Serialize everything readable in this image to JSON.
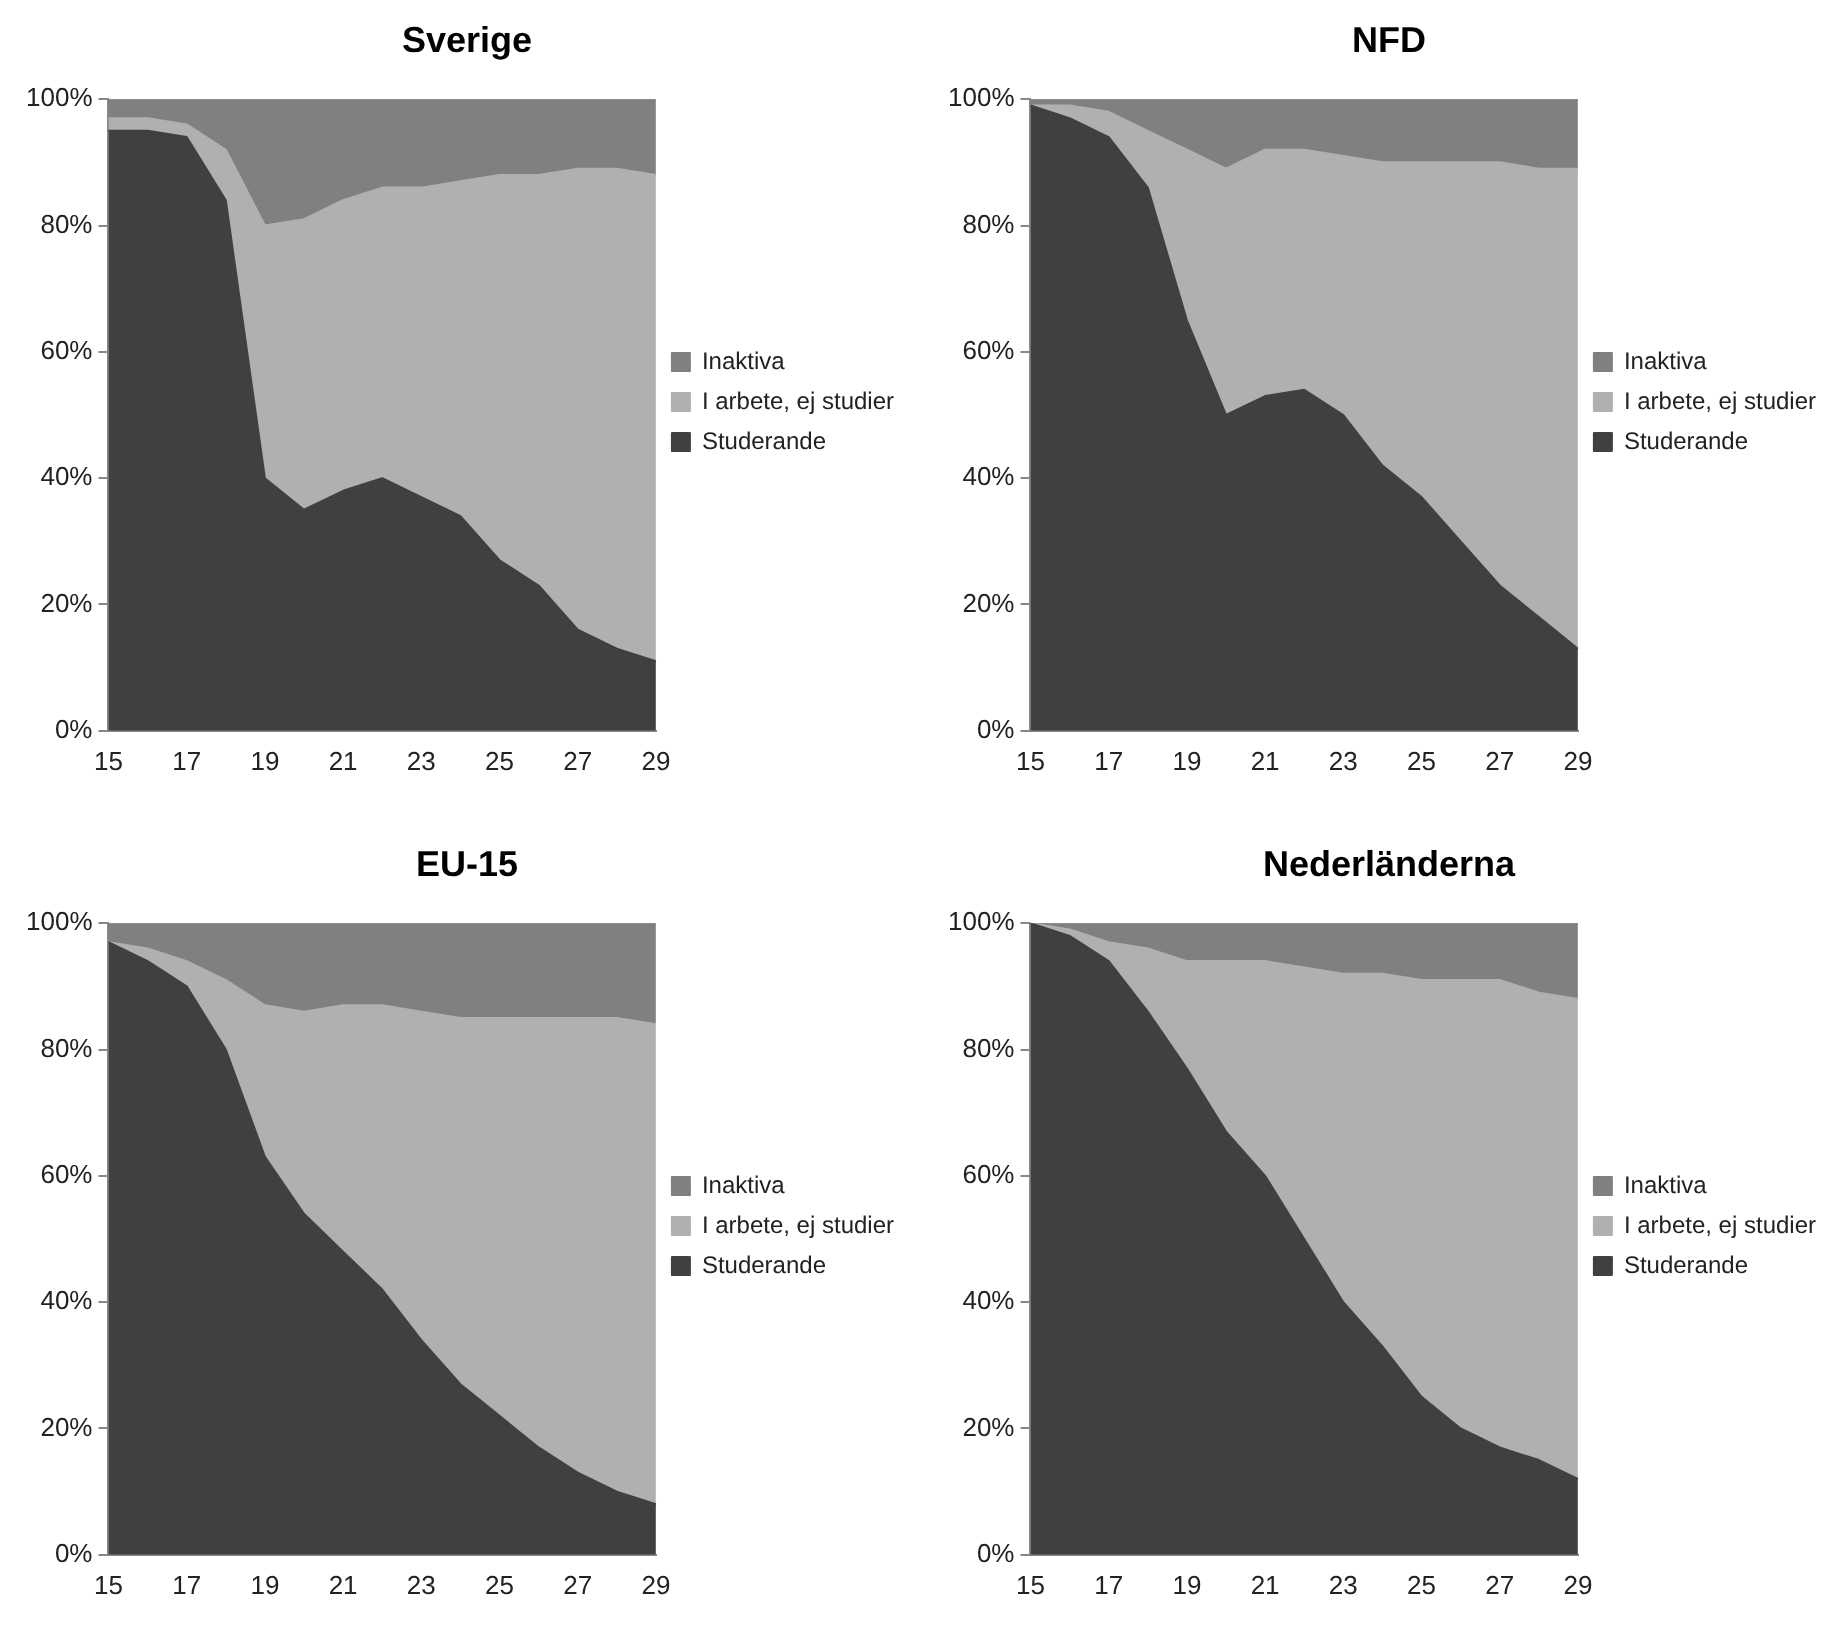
{
  "chart_data": [
    {
      "type": "area",
      "title": "Sverige",
      "stacked": true,
      "legend": "right",
      "grid": false,
      "categories": [
        "15",
        null,
        "17",
        null,
        "19",
        null,
        "21",
        null,
        "23",
        null,
        "25",
        null,
        "27",
        null,
        "29"
      ],
      "ylim": [
        0,
        100
      ],
      "yticks": [
        {
          "value": 0,
          "label": "0%"
        },
        {
          "value": 20,
          "label": "20%"
        },
        {
          "value": 40,
          "label": "40%"
        },
        {
          "value": 60,
          "label": "60%"
        },
        {
          "value": 80,
          "label": "80%"
        },
        {
          "value": 100,
          "label": "100%"
        }
      ],
      "series": [
        {
          "name": "Studerande",
          "color": "#404040",
          "values": [
            95,
            95,
            94,
            84,
            40,
            35,
            38,
            40,
            37,
            34,
            27,
            23,
            16,
            13,
            11
          ]
        },
        {
          "name": "I arbete, ej studier",
          "color": "#b0b0b0",
          "values": [
            2,
            2,
            2,
            8,
            40,
            46,
            46,
            46,
            49,
            53,
            61,
            65,
            73,
            76,
            77
          ]
        },
        {
          "name": "Inaktiva",
          "color": "#808080",
          "values": [
            3,
            3,
            4,
            8,
            20,
            19,
            16,
            14,
            14,
            13,
            12,
            12,
            11,
            11,
            12
          ]
        }
      ]
    },
    {
      "type": "area",
      "title": "NFD",
      "stacked": true,
      "legend": "right",
      "grid": false,
      "categories": [
        "15",
        null,
        "17",
        null,
        "19",
        null,
        "21",
        null,
        "23",
        null,
        "25",
        null,
        "27",
        null,
        "29"
      ],
      "ylim": [
        0,
        100
      ],
      "yticks": [
        {
          "value": 0,
          "label": "0%"
        },
        {
          "value": 20,
          "label": "20%"
        },
        {
          "value": 40,
          "label": "40%"
        },
        {
          "value": 60,
          "label": "60%"
        },
        {
          "value": 80,
          "label": "80%"
        },
        {
          "value": 100,
          "label": "100%"
        }
      ],
      "series": [
        {
          "name": "Studerande",
          "color": "#404040",
          "values": [
            99,
            97,
            94,
            86,
            65,
            50,
            53,
            54,
            50,
            42,
            37,
            30,
            23,
            18,
            13
          ]
        },
        {
          "name": "I arbete, ej studier",
          "color": "#b0b0b0",
          "values": [
            0,
            2,
            4,
            9,
            27,
            39,
            39,
            38,
            41,
            48,
            53,
            60,
            67,
            71,
            76
          ]
        },
        {
          "name": "Inaktiva",
          "color": "#808080",
          "values": [
            1,
            1,
            2,
            5,
            8,
            11,
            8,
            8,
            9,
            10,
            10,
            10,
            10,
            11,
            11
          ]
        }
      ]
    },
    {
      "type": "area",
      "title": "EU-15",
      "stacked": true,
      "legend": "right",
      "grid": false,
      "categories": [
        "15",
        null,
        "17",
        null,
        "19",
        null,
        "21",
        null,
        "23",
        null,
        "25",
        null,
        "27",
        null,
        "29"
      ],
      "ylim": [
        0,
        100
      ],
      "yticks": [
        {
          "value": 0,
          "label": "0%"
        },
        {
          "value": 20,
          "label": "20%"
        },
        {
          "value": 40,
          "label": "40%"
        },
        {
          "value": 60,
          "label": "60%"
        },
        {
          "value": 80,
          "label": "80%"
        },
        {
          "value": 100,
          "label": "100%"
        }
      ],
      "series": [
        {
          "name": "Studerande",
          "color": "#404040",
          "values": [
            97,
            94,
            90,
            80,
            63,
            54,
            48,
            42,
            34,
            27,
            22,
            17,
            13,
            10,
            8
          ]
        },
        {
          "name": "I arbete, ej studier",
          "color": "#b0b0b0",
          "values": [
            0,
            2,
            4,
            11,
            24,
            32,
            39,
            45,
            52,
            58,
            63,
            68,
            72,
            75,
            76
          ]
        },
        {
          "name": "Inaktiva",
          "color": "#808080",
          "values": [
            3,
            4,
            6,
            9,
            13,
            14,
            13,
            13,
            14,
            15,
            15,
            15,
            15,
            15,
            16
          ]
        }
      ]
    },
    {
      "type": "area",
      "title": "Nederländerna",
      "stacked": true,
      "legend": "right",
      "grid": false,
      "categories": [
        "15",
        null,
        "17",
        null,
        "19",
        null,
        "21",
        null,
        "23",
        null,
        "25",
        null,
        "27",
        null,
        "29"
      ],
      "ylim": [
        0,
        100
      ],
      "yticks": [
        {
          "value": 0,
          "label": "0%"
        },
        {
          "value": 20,
          "label": "20%"
        },
        {
          "value": 40,
          "label": "40%"
        },
        {
          "value": 60,
          "label": "60%"
        },
        {
          "value": 80,
          "label": "80%"
        },
        {
          "value": 100,
          "label": "100%"
        }
      ],
      "series": [
        {
          "name": "Studerande",
          "color": "#404040",
          "values": [
            100,
            98,
            94,
            86,
            77,
            67,
            60,
            50,
            40,
            33,
            25,
            20,
            17,
            15,
            12
          ]
        },
        {
          "name": "I arbete, ej studier",
          "color": "#b0b0b0",
          "values": [
            0,
            1,
            3,
            10,
            17,
            27,
            34,
            43,
            52,
            59,
            66,
            71,
            74,
            74,
            76
          ]
        },
        {
          "name": "Inaktiva",
          "color": "#808080",
          "values": [
            0,
            1,
            3,
            4,
            6,
            6,
            6,
            7,
            8,
            8,
            9,
            9,
            9,
            11,
            12
          ]
        }
      ]
    }
  ]
}
